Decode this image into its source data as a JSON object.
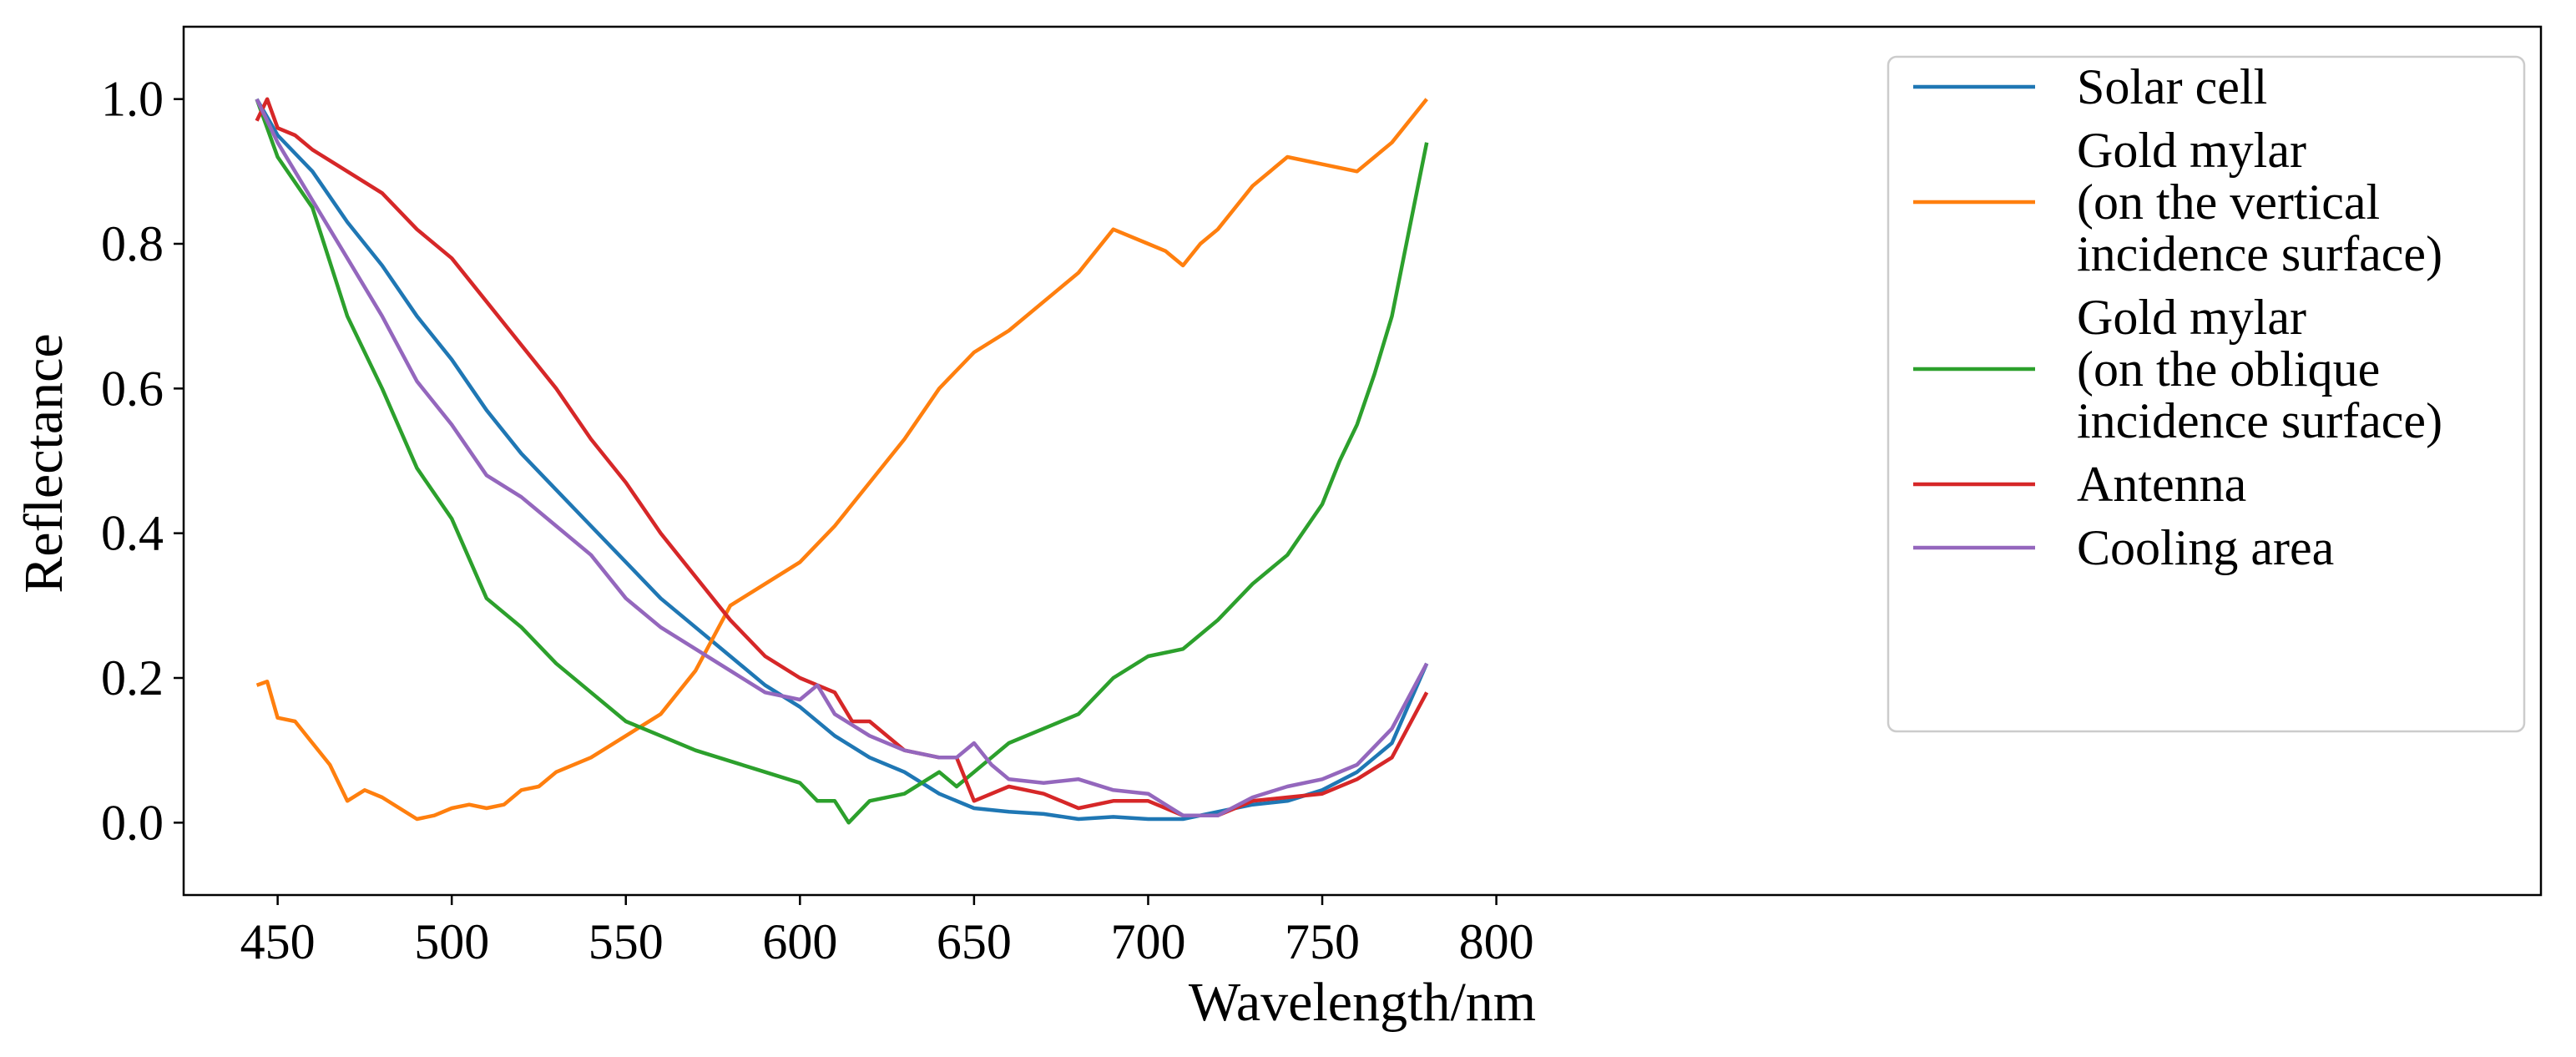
{
  "chart_data": {
    "type": "line",
    "title": "",
    "xlabel": "Wavelength/nm",
    "ylabel": "Reflectance",
    "xlim": [
      423,
      1100
    ],
    "ylim": [
      -0.1,
      1.1
    ],
    "xticks": [
      "450",
      "500",
      "550",
      "600",
      "650",
      "700",
      "750",
      "800"
    ],
    "yticks": [
      "0.0",
      "0.2",
      "0.4",
      "0.6",
      "0.8",
      "1.0"
    ],
    "grid": false,
    "legend_position": "top-right",
    "series": [
      {
        "name": "Solar cell",
        "legend_lines": [
          "Solar cell"
        ],
        "color": "#1f77b4",
        "x": [
          444,
          450,
          460,
          470,
          480,
          490,
          500,
          510,
          520,
          530,
          540,
          550,
          560,
          570,
          580,
          590,
          600,
          610,
          620,
          630,
          640,
          650,
          660,
          670,
          680,
          690,
          700,
          710,
          720,
          730,
          740,
          750,
          760,
          770,
          780
        ],
        "y": [
          1.0,
          0.95,
          0.9,
          0.83,
          0.77,
          0.7,
          0.64,
          0.57,
          0.51,
          0.46,
          0.41,
          0.36,
          0.31,
          0.27,
          0.23,
          0.19,
          0.16,
          0.12,
          0.09,
          0.07,
          0.04,
          0.02,
          0.015,
          0.012,
          0.005,
          0.008,
          0.005,
          0.005,
          0.015,
          0.025,
          0.03,
          0.045,
          0.07,
          0.11,
          0.22
        ]
      },
      {
        "name": "Gold mylar (on the vertical incidence surface)",
        "legend_lines": [
          "Gold mylar",
          "(on the vertical",
          "incidence surface)"
        ],
        "color": "#ff7f0e",
        "x": [
          444,
          447,
          450,
          455,
          460,
          465,
          470,
          475,
          480,
          485,
          490,
          495,
          500,
          505,
          510,
          515,
          520,
          525,
          530,
          540,
          550,
          560,
          570,
          580,
          590,
          600,
          610,
          620,
          630,
          640,
          650,
          660,
          670,
          680,
          690,
          700,
          705,
          710,
          715,
          720,
          730,
          740,
          750,
          760,
          770,
          780
        ],
        "y": [
          0.19,
          0.195,
          0.145,
          0.14,
          0.11,
          0.08,
          0.03,
          0.045,
          0.035,
          0.02,
          0.005,
          0.01,
          0.02,
          0.025,
          0.02,
          0.025,
          0.045,
          0.05,
          0.07,
          0.09,
          0.12,
          0.15,
          0.21,
          0.3,
          0.33,
          0.36,
          0.41,
          0.47,
          0.53,
          0.6,
          0.65,
          0.68,
          0.72,
          0.76,
          0.82,
          0.8,
          0.79,
          0.77,
          0.8,
          0.82,
          0.88,
          0.92,
          0.91,
          0.9,
          0.94,
          1.0
        ]
      },
      {
        "name": "Gold mylar (on the oblique incidence surface)",
        "legend_lines": [
          "Gold mylar",
          "(on the oblique",
          "incidence surface)"
        ],
        "color": "#2ca02c",
        "x": [
          444,
          450,
          460,
          470,
          480,
          490,
          500,
          510,
          520,
          530,
          540,
          550,
          560,
          570,
          580,
          590,
          600,
          605,
          610,
          614,
          620,
          630,
          640,
          645,
          650,
          660,
          670,
          680,
          690,
          700,
          710,
          720,
          730,
          740,
          750,
          755,
          760,
          765,
          770,
          775,
          780
        ],
        "y": [
          1.0,
          0.92,
          0.85,
          0.7,
          0.6,
          0.49,
          0.42,
          0.31,
          0.27,
          0.22,
          0.18,
          0.14,
          0.12,
          0.1,
          0.085,
          0.07,
          0.055,
          0.03,
          0.03,
          0.0,
          0.03,
          0.04,
          0.07,
          0.05,
          0.07,
          0.11,
          0.13,
          0.15,
          0.2,
          0.23,
          0.24,
          0.28,
          0.33,
          0.37,
          0.44,
          0.5,
          0.55,
          0.62,
          0.7,
          0.82,
          0.94
        ]
      },
      {
        "name": "Antenna",
        "legend_lines": [
          "Antenna"
        ],
        "color": "#d62728",
        "x": [
          444,
          447,
          450,
          455,
          460,
          470,
          480,
          490,
          500,
          510,
          520,
          530,
          540,
          550,
          560,
          570,
          580,
          590,
          600,
          610,
          615,
          620,
          630,
          640,
          645,
          650,
          660,
          670,
          680,
          690,
          700,
          710,
          720,
          730,
          740,
          750,
          760,
          770,
          780
        ],
        "y": [
          0.97,
          1.0,
          0.96,
          0.95,
          0.93,
          0.9,
          0.87,
          0.82,
          0.78,
          0.72,
          0.66,
          0.6,
          0.53,
          0.47,
          0.4,
          0.34,
          0.28,
          0.23,
          0.2,
          0.18,
          0.14,
          0.14,
          0.1,
          0.09,
          0.09,
          0.03,
          0.05,
          0.04,
          0.02,
          0.03,
          0.03,
          0.01,
          0.01,
          0.03,
          0.035,
          0.04,
          0.06,
          0.09,
          0.18
        ]
      },
      {
        "name": "Cooling area",
        "legend_lines": [
          "Cooling area"
        ],
        "color": "#9467bd",
        "x": [
          444,
          450,
          460,
          470,
          480,
          490,
          500,
          510,
          520,
          530,
          540,
          550,
          560,
          570,
          580,
          590,
          600,
          605,
          610,
          620,
          630,
          640,
          645,
          650,
          655,
          660,
          670,
          680,
          690,
          700,
          710,
          720,
          730,
          740,
          750,
          760,
          770,
          780
        ],
        "y": [
          1.0,
          0.94,
          0.86,
          0.78,
          0.7,
          0.61,
          0.55,
          0.48,
          0.45,
          0.41,
          0.37,
          0.31,
          0.27,
          0.24,
          0.21,
          0.18,
          0.17,
          0.19,
          0.15,
          0.12,
          0.1,
          0.09,
          0.09,
          0.11,
          0.08,
          0.06,
          0.055,
          0.06,
          0.045,
          0.04,
          0.01,
          0.01,
          0.035,
          0.05,
          0.06,
          0.08,
          0.13,
          0.22
        ]
      }
    ]
  }
}
